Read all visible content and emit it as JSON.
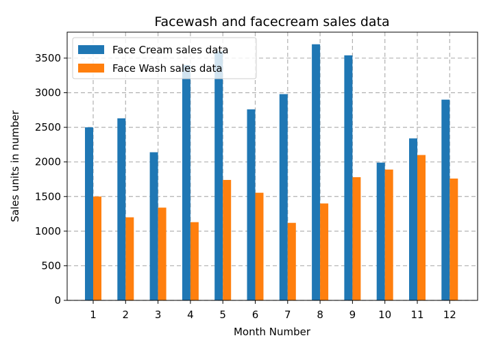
{
  "chart_data": {
    "type": "bar",
    "title": "Facewash and facecream sales data",
    "xlabel": "Month Number",
    "ylabel": "Sales units in number",
    "categories": [
      "1",
      "2",
      "3",
      "4",
      "5",
      "6",
      "7",
      "8",
      "9",
      "10",
      "11",
      "12"
    ],
    "series": [
      {
        "name": "Face Cream sales data",
        "color": "#1f77b4",
        "values": [
          2500,
          2630,
          2140,
          3400,
          3600,
          2760,
          2980,
          3700,
          3540,
          1990,
          2340,
          2900
        ]
      },
      {
        "name": "Face Wash sales data",
        "color": "#ff7f0e",
        "values": [
          1500,
          1200,
          1340,
          1130,
          1740,
          1555,
          1120,
          1400,
          1780,
          1890,
          2100,
          1760
        ]
      }
    ],
    "ylim": [
      0,
      3875
    ],
    "yticks": [
      "0",
      "500",
      "1000",
      "1500",
      "2000",
      "2500",
      "3000",
      "3500"
    ],
    "grid": true,
    "legend_position": "upper-left"
  }
}
